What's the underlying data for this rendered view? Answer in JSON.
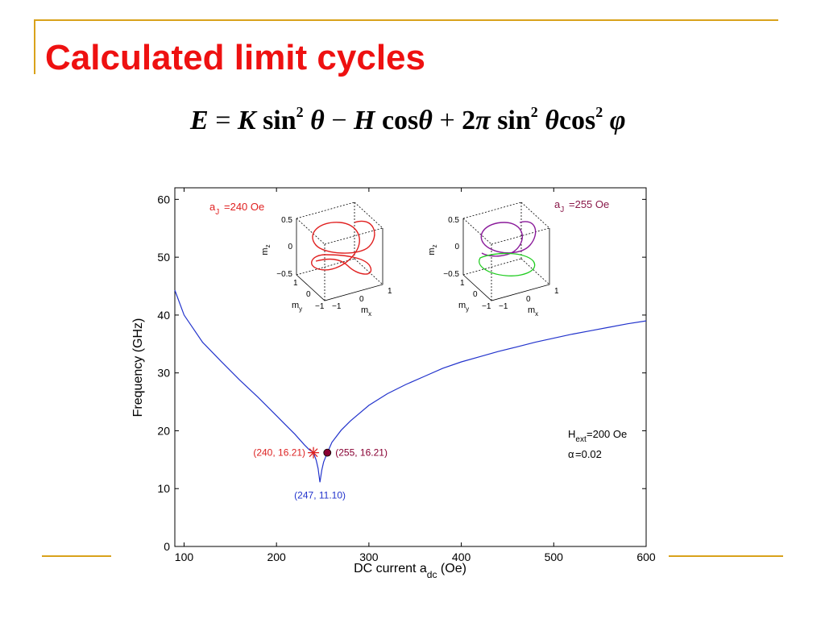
{
  "slide": {
    "title": "Calculated limit cycles"
  },
  "colors": {
    "title": "#ee1111",
    "rule": "#d9a21b",
    "curve": "#2233cc",
    "marker_240": "#dd2222",
    "marker_255": "#880033",
    "inset_red": "#e02020",
    "inset_purple": "#8a1a9a",
    "inset_green": "#22cc22"
  },
  "chart_data": {
    "type": "line",
    "xlabel": "DC current a_dc (Oe)",
    "ylabel": "Frequency (GHz)",
    "xlim": [
      90,
      600
    ],
    "ylim": [
      0,
      62
    ],
    "x_ticks": [
      100,
      200,
      300,
      400,
      500,
      600
    ],
    "y_ticks": [
      0,
      10,
      20,
      30,
      40,
      50,
      60
    ],
    "grid": false,
    "series": [
      {
        "x": [
          90,
          100,
          120,
          140,
          160,
          180,
          200,
          210,
          220,
          230,
          235,
          240,
          243,
          245,
          247,
          249,
          251,
          255,
          260,
          270,
          280,
          300,
          320,
          340,
          360,
          380,
          400,
          420,
          440,
          460,
          480,
          500,
          520,
          540,
          560,
          580,
          600
        ],
        "y": [
          44.3,
          40.0,
          35.3,
          32.0,
          28.8,
          25.8,
          22.6,
          21.0,
          19.4,
          17.6,
          16.8,
          16.2,
          14.9,
          13.5,
          11.1,
          13.2,
          14.6,
          16.2,
          18.0,
          20.1,
          21.7,
          24.4,
          26.4,
          28.0,
          29.4,
          30.8,
          31.9,
          32.8,
          33.7,
          34.5,
          35.3,
          36.0,
          36.7,
          37.3,
          37.9,
          38.5,
          39.0
        ]
      }
    ],
    "annotations": [
      {
        "x": 240,
        "y": 16.21,
        "label": "(240, 16.21)",
        "marker": "asterisk"
      },
      {
        "x": 255,
        "y": 16.21,
        "label": "(255, 16.21)",
        "marker": "filled-circle"
      },
      {
        "x": 247,
        "y": 11.1,
        "label": "(247, 11.10)",
        "marker": "none"
      }
    ],
    "params": [
      "=200 Oe",
      "=0.02"
    ],
    "insets": [
      {
        "label": "=240 Oe",
        "axes": [
          "x",
          "y",
          "z"
        ],
        "z_ticks": [
          "0.5",
          "0",
          "−0.5"
        ],
        "x_ticks": [
          "−1",
          "0",
          "1"
        ],
        "y_ticks": [
          "−1",
          "0",
          "1"
        ]
      },
      {
        "label": "=255 Oe",
        "axes": [
          "x",
          "y",
          "z"
        ],
        "z_ticks": [
          "0.5",
          "0",
          "−0.5"
        ],
        "x_ticks": [
          "−1",
          "0",
          "1"
        ],
        "y_ticks": [
          "−1",
          "0",
          "1"
        ]
      }
    ]
  }
}
